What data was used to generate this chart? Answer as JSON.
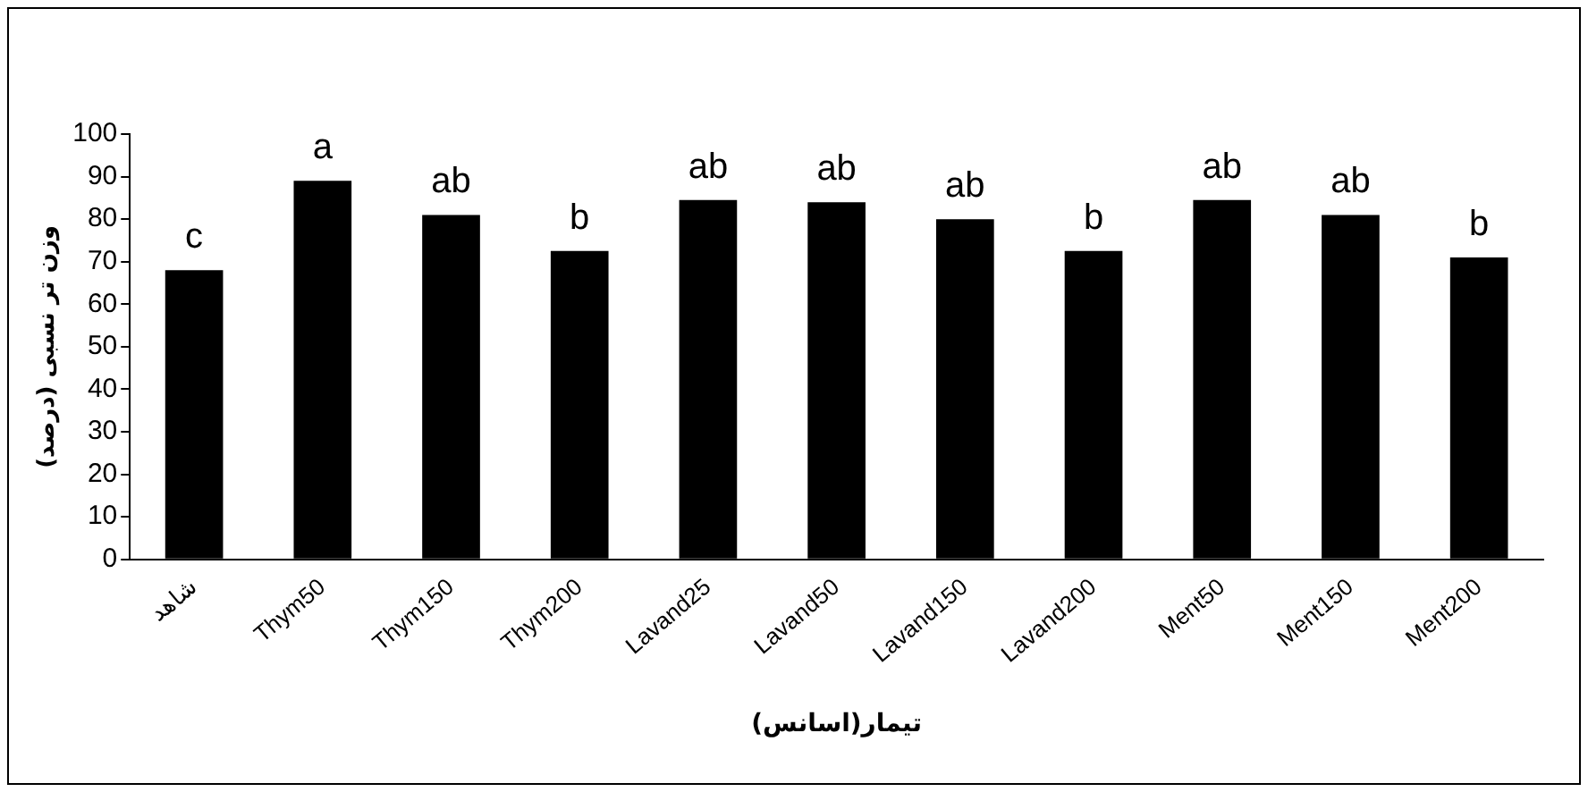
{
  "chart_data": {
    "type": "bar",
    "xlabel": "تیمار(اسانس)",
    "ylabel": "وزن تر نسبی (درصد)",
    "categories": [
      "شاهد",
      "Thym50",
      "Thym150",
      "Thym200",
      "Lavand25",
      "Lavand50",
      "Lavand150",
      "Lavand200",
      "Ment50",
      "Ment150",
      "Ment200"
    ],
    "values": [
      68,
      89,
      81,
      72.5,
      84.5,
      84,
      80,
      72.5,
      84.5,
      81,
      71
    ],
    "color": "#000000",
    "ylim": [
      0,
      100
    ],
    "yticks": [
      0,
      10,
      20,
      30,
      40,
      50,
      60,
      70,
      80,
      90,
      100
    ],
    "grid": false,
    "legend": false,
    "annotations": [
      {
        "text": "c",
        "x": "شاهد",
        "y": 68
      },
      {
        "text": "a",
        "x": "Thym50",
        "y": 89
      },
      {
        "text": "ab",
        "x": "Thym150",
        "y": 81
      },
      {
        "text": "b",
        "x": "Thym200",
        "y": 72.5
      },
      {
        "text": "ab",
        "x": "Lavand25",
        "y": 84.5
      },
      {
        "text": "ab",
        "x": "Lavand50",
        "y": 84
      },
      {
        "text": "ab",
        "x": "Lavand150",
        "y": 80
      },
      {
        "text": "b",
        "x": "Lavand200",
        "y": 72.5
      },
      {
        "text": "ab",
        "x": "Ment50",
        "y": 84.5
      },
      {
        "text": "ab",
        "x": "Ment150",
        "y": 81
      },
      {
        "text": "b",
        "x": "Ment200",
        "y": 71
      }
    ]
  }
}
